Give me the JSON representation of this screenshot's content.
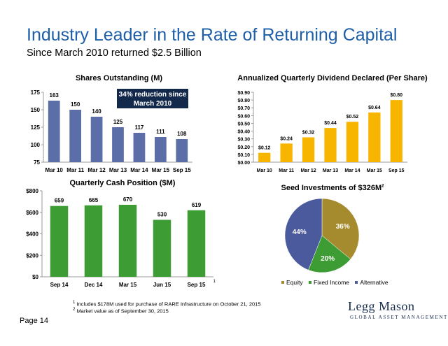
{
  "header": {
    "title": "Industry Leader in the Rate of Returning Capital",
    "subtitle": "Since March 2010 returned $2.5 Billion"
  },
  "chart_data": [
    {
      "type": "bar",
      "title": "Shares Outstanding (M)",
      "categories": [
        "Mar 10",
        "Mar 11",
        "Mar 12",
        "Mar 13",
        "Mar 14",
        "Mar 15",
        "Sep 15"
      ],
      "values": [
        163,
        150,
        140,
        125,
        117,
        111,
        108
      ],
      "data_labels": [
        "163",
        "150",
        "140",
        "125",
        "117",
        "111",
        "108"
      ],
      "ylim": [
        75,
        175
      ],
      "yticks": [
        75,
        100,
        125,
        150,
        175
      ],
      "ytick_labels": [
        "75",
        "100",
        "125",
        "150",
        "175"
      ],
      "color": "#5b6ea8",
      "annotation": {
        "line1": "34% reduction since",
        "line2": "March 2010"
      },
      "xlabel": "",
      "ylabel": ""
    },
    {
      "type": "bar",
      "title": "Annualized Quarterly Dividend Declared (Per Share)",
      "categories": [
        "Mar 10",
        "Mar 11",
        "Mar 12",
        "Mar 13",
        "Mar 14",
        "Mar 15",
        "Sep 15"
      ],
      "values": [
        0.12,
        0.24,
        0.32,
        0.44,
        0.52,
        0.64,
        0.8
      ],
      "data_labels": [
        "$0.12",
        "$0.24",
        "$0.32",
        "$0.44",
        "$0.52",
        "$0.64",
        "$0.80"
      ],
      "ylim": [
        0,
        0.9
      ],
      "yticks": [
        0,
        0.1,
        0.2,
        0.3,
        0.4,
        0.5,
        0.6,
        0.7,
        0.8,
        0.9
      ],
      "ytick_labels": [
        "$0.00",
        "$0.10",
        "$0.20",
        "$0.30",
        "$0.40",
        "$0.50",
        "$0.60",
        "$0.70",
        "$0.80",
        "$0.90"
      ],
      "color": "#f7b500",
      "xlabel": "",
      "ylabel": ""
    },
    {
      "type": "bar",
      "title": "Quarterly Cash Position ($M)",
      "categories": [
        "Sep 14",
        "Dec 14",
        "Mar 15",
        "Jun 15",
        "Sep 15"
      ],
      "values": [
        659,
        665,
        670,
        530,
        619
      ],
      "data_labels": [
        "659",
        "665",
        "670",
        "530",
        "619"
      ],
      "ylim": [
        0,
        800
      ],
      "yticks": [
        0,
        200,
        400,
        600,
        800
      ],
      "ytick_labels": [
        "$0",
        "$200",
        "$400",
        "$600",
        "$800"
      ],
      "color": "#3e9c35",
      "last_category_marker": "1",
      "xlabel": "",
      "ylabel": ""
    },
    {
      "type": "pie",
      "title": "Seed Investments of $326M",
      "title_marker": "2",
      "slices": [
        {
          "name": "Equity",
          "value": 36,
          "label": "36%",
          "color": "#a68a2e"
        },
        {
          "name": "Fixed Income",
          "value": 20,
          "label": "20%",
          "color": "#3e9c35"
        },
        {
          "name": "Alternative",
          "value": 44,
          "label": "44%",
          "color": "#4a5a9c"
        }
      ],
      "legend": "bottom"
    }
  ],
  "footnotes": [
    {
      "marker": "1",
      "text": "Includes $178M used for purchase of RARE Infrastructure on October 21, 2015"
    },
    {
      "marker": "2",
      "text": "Market value as of September 30, 2015"
    }
  ],
  "page_label": "Page 14",
  "logo": {
    "main": "Legg Mason",
    "sub": "GLOBAL ASSET MANAGEMENT"
  }
}
